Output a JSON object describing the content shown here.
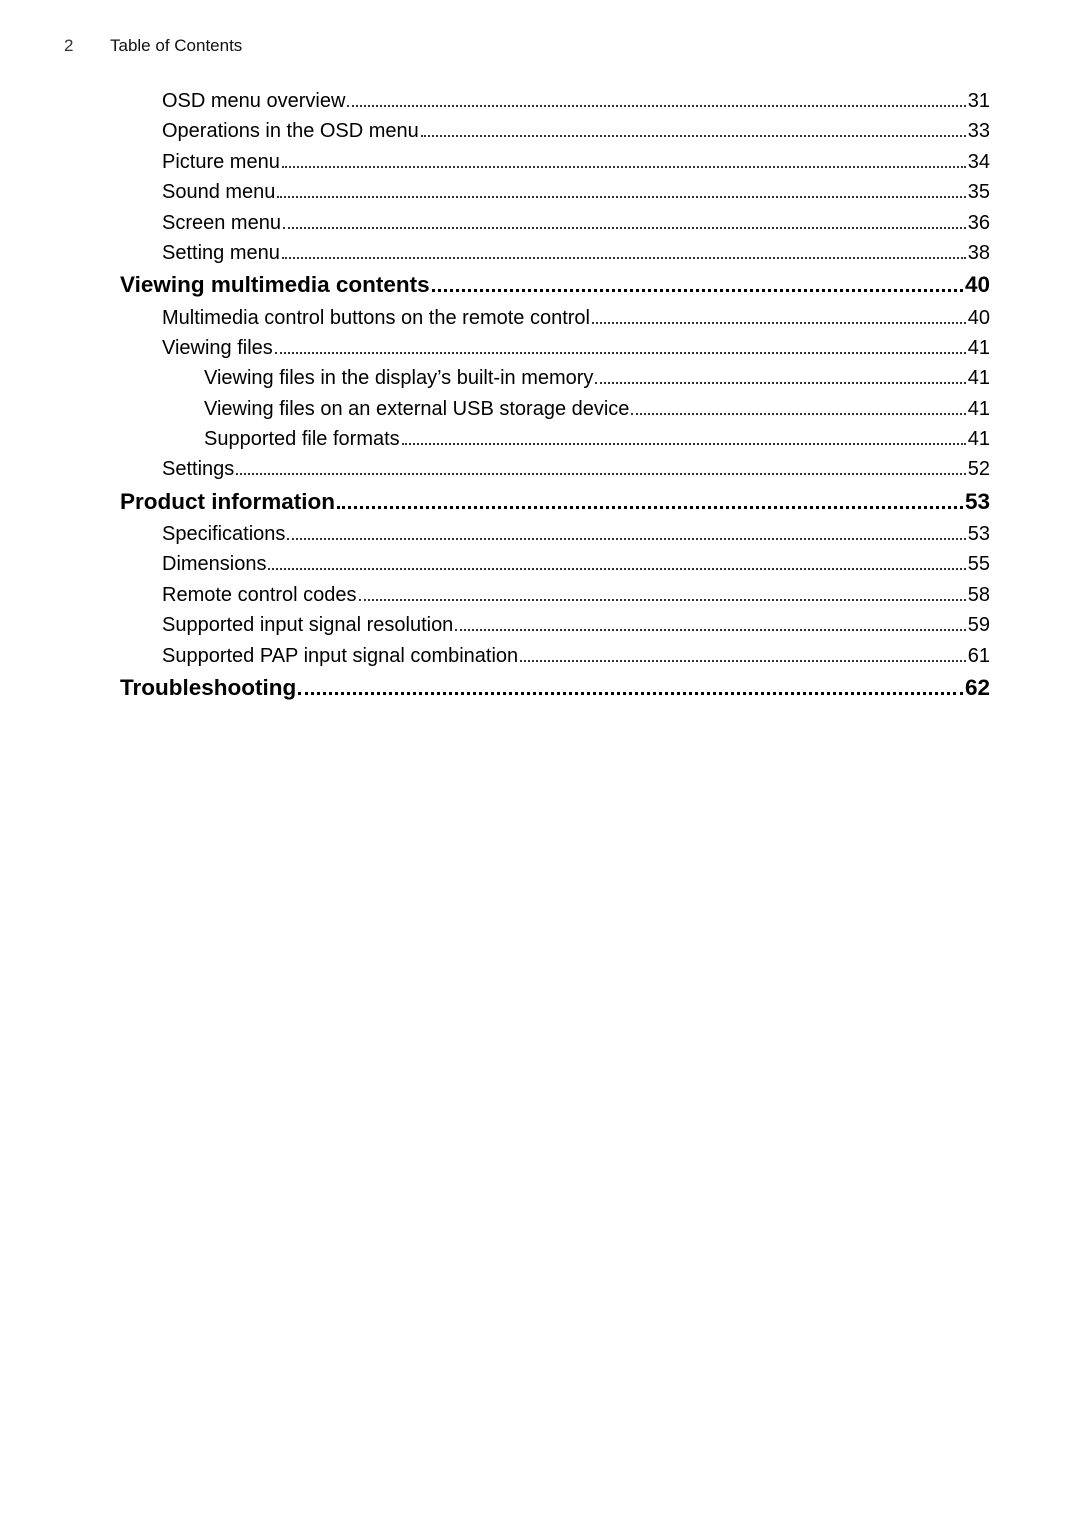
{
  "header": {
    "page_number": "2",
    "title": "Table of Contents"
  },
  "toc": [
    {
      "level": 1,
      "title": "OSD menu overview",
      "page": "31"
    },
    {
      "level": 1,
      "title": "Operations in the OSD menu",
      "page": "33"
    },
    {
      "level": 1,
      "title": "Picture menu ",
      "page": "34"
    },
    {
      "level": 1,
      "title": "Sound menu",
      "page": "35"
    },
    {
      "level": 1,
      "title": "Screen menu",
      "page": "36"
    },
    {
      "level": 1,
      "title": "Setting menu",
      "page": "38"
    },
    {
      "level": 0,
      "title": "Viewing multimedia contents",
      "page": "40"
    },
    {
      "level": 1,
      "title": "Multimedia control buttons on the remote control",
      "page": "40"
    },
    {
      "level": 1,
      "title": "Viewing files",
      "page": "41"
    },
    {
      "level": 2,
      "title": "Viewing files in the display’s built-in memory",
      "page": "41"
    },
    {
      "level": 2,
      "title": "Viewing files on an external USB storage device",
      "page": "41"
    },
    {
      "level": 2,
      "title": "Supported file formats",
      "page": "41"
    },
    {
      "level": 1,
      "title": "Settings",
      "page": "52"
    },
    {
      "level": 0,
      "title": "Product information",
      "page": "53"
    },
    {
      "level": 1,
      "title": "Specifications",
      "page": "53"
    },
    {
      "level": 1,
      "title": "Dimensions",
      "page": "55"
    },
    {
      "level": 1,
      "title": "Remote control codes",
      "page": "58"
    },
    {
      "level": 1,
      "title": "Supported input signal resolution",
      "page": "59"
    },
    {
      "level": 1,
      "title": "Supported PAP input signal combination",
      "page": "61"
    },
    {
      "level": 0,
      "title": "Troubleshooting",
      "page": "62"
    }
  ]
}
